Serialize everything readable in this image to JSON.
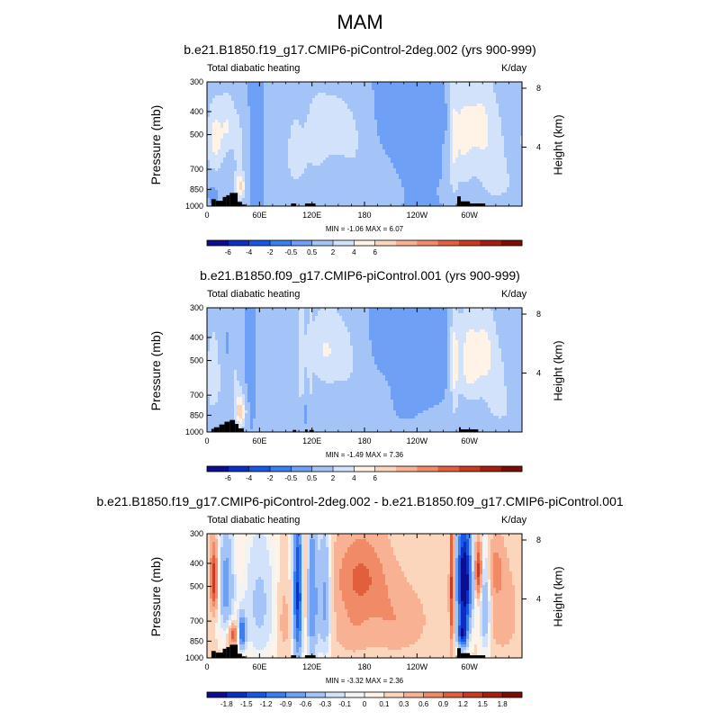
{
  "page": {
    "title": "MAM"
  },
  "chart_data": [
    {
      "type": "heatmap",
      "title": "b.e21.B1850.f19_g17.CMIP6-piControl-2deg.002 (yrs 900-999)",
      "subtitle_left": "Total diabatic heating",
      "subtitle_right": "K/day",
      "ylabel": "Pressure (mb)",
      "ylabel_right": "Height (km)",
      "x_ticks": [
        "0",
        "60E",
        "120E",
        "180",
        "120W",
        "60W"
      ],
      "x_tick_lon": [
        0,
        60,
        120,
        180,
        240,
        300
      ],
      "xlim": [
        0,
        360
      ],
      "y_ticks": [
        "300",
        "400",
        "500",
        "700",
        "850",
        "1000"
      ],
      "y_tick_p": [
        300,
        400,
        500,
        700,
        850,
        1000
      ],
      "ylim_mb": [
        1000,
        300
      ],
      "height_ticks": [
        "8",
        "4"
      ],
      "height_tick_km": [
        8,
        4
      ],
      "min_max": "MIN = -1.06  MAX = 6.07",
      "colorbar_labels": [
        "-6",
        "-4",
        "-2",
        "-0.5",
        "0.5",
        "2",
        "4",
        "6"
      ],
      "colorbar_colors": [
        "#0d0d8f",
        "#0a2fc2",
        "#1856e6",
        "#3a7ef0",
        "#6ea1f5",
        "#a4c3f7",
        "#d2e2fa",
        "#fff2e6",
        "#fcd5bd",
        "#f8b192",
        "#f08a67",
        "#e25f3e",
        "#c93a1e",
        "#a51f0e",
        "#7d0c04"
      ],
      "blobs": [
        {
          "lon": 10,
          "p": 520,
          "slon": 7,
          "sp": 120,
          "amp": 4.4
        },
        {
          "lon": 24,
          "p": 450,
          "slon": 5,
          "sp": 90,
          "amp": 3.0
        },
        {
          "lon": 38,
          "p": 830,
          "slon": 4,
          "sp": 70,
          "amp": 5.6
        },
        {
          "lon": 36,
          "p": 560,
          "slon": 5,
          "sp": 160,
          "amp": 2.0
        },
        {
          "lon": 5,
          "p": 880,
          "slon": 4,
          "sp": 50,
          "amp": -0.8
        },
        {
          "lon": 55,
          "p": 600,
          "slon": 4,
          "sp": 200,
          "amp": -0.6
        },
        {
          "lon": 100,
          "p": 560,
          "slon": 10,
          "sp": 220,
          "amp": 1.6
        },
        {
          "lon": 143,
          "p": 450,
          "slon": 12,
          "sp": 90,
          "amp": 2.6
        },
        {
          "lon": 125,
          "p": 470,
          "slon": 8,
          "sp": 120,
          "amp": 1.8
        },
        {
          "lon": 168,
          "p": 500,
          "slon": 12,
          "sp": 150,
          "amp": 1.3
        },
        {
          "lon": 130,
          "p": 700,
          "slon": 25,
          "sp": 160,
          "amp": 1.0
        },
        {
          "lon": 190,
          "p": 780,
          "slon": 22,
          "sp": 150,
          "amp": 0.8
        },
        {
          "lon": 225,
          "p": 550,
          "slon": 28,
          "sp": 250,
          "amp": -0.45
        },
        {
          "lon": 268,
          "p": 430,
          "slon": 5,
          "sp": 50,
          "amp": -0.9
        },
        {
          "lon": 292,
          "p": 500,
          "slon": 9,
          "sp": 180,
          "amp": 3.8
        },
        {
          "lon": 312,
          "p": 450,
          "slon": 10,
          "sp": 150,
          "amp": 3.2
        },
        {
          "lon": 282,
          "p": 560,
          "slon": 3,
          "sp": 260,
          "amp": 2.2
        },
        {
          "lon": 328,
          "p": 620,
          "slon": 12,
          "sp": 220,
          "amp": 2.2
        },
        {
          "lon": 345,
          "p": 820,
          "slon": 15,
          "sp": 120,
          "amp": 0.9
        },
        {
          "lon": 300,
          "p": 840,
          "slon": 18,
          "sp": 80,
          "amp": 0.6
        }
      ],
      "background": 0.5,
      "topography": [
        {
          "lon0": 5,
          "lon1": 10,
          "p": 935
        },
        {
          "lon0": 10,
          "lon1": 18,
          "p": 950
        },
        {
          "lon0": 18,
          "lon1": 22,
          "p": 915
        },
        {
          "lon0": 22,
          "lon1": 26,
          "p": 900
        },
        {
          "lon0": 26,
          "lon1": 35,
          "p": 880
        },
        {
          "lon0": 35,
          "lon1": 40,
          "p": 960
        },
        {
          "lon0": 40,
          "lon1": 44,
          "p": 985
        },
        {
          "lon0": 96,
          "lon1": 102,
          "p": 975
        },
        {
          "lon0": 112,
          "lon1": 124,
          "p": 975
        },
        {
          "lon0": 286,
          "lon1": 290,
          "p": 910
        },
        {
          "lon0": 290,
          "lon1": 300,
          "p": 955
        },
        {
          "lon0": 300,
          "lon1": 318,
          "p": 975
        }
      ]
    },
    {
      "type": "heatmap",
      "title": "b.e21.B1850.f09_g17.CMIP6-piControl.001 (yrs 900-999)",
      "subtitle_left": "Total diabatic heating",
      "subtitle_right": "K/day",
      "ylabel": "Pressure (mb)",
      "ylabel_right": "Height (km)",
      "x_ticks": [
        "0",
        "60E",
        "120E",
        "180",
        "120W",
        "60W"
      ],
      "x_tick_lon": [
        0,
        60,
        120,
        180,
        240,
        300
      ],
      "xlim": [
        0,
        360
      ],
      "y_ticks": [
        "300",
        "400",
        "500",
        "700",
        "850",
        "1000"
      ],
      "y_tick_p": [
        300,
        400,
        500,
        700,
        850,
        1000
      ],
      "ylim_mb": [
        1000,
        300
      ],
      "height_ticks": [
        "8",
        "4"
      ],
      "height_tick_km": [
        8,
        4
      ],
      "min_max": "MIN = -1.49  MAX = 7.36",
      "colorbar_labels": [
        "-6",
        "-4",
        "-2",
        "-0.5",
        "0.5",
        "2",
        "4",
        "6"
      ],
      "colorbar_colors": [
        "#0d0d8f",
        "#0a2fc2",
        "#1856e6",
        "#3a7ef0",
        "#6ea1f5",
        "#a4c3f7",
        "#d2e2fa",
        "#fff2e6",
        "#fcd5bd",
        "#f8b192",
        "#f08a67",
        "#e25f3e",
        "#c93a1e",
        "#a51f0e",
        "#7d0c04"
      ],
      "blobs": [
        {
          "lon": 8,
          "p": 560,
          "slon": 8,
          "sp": 200,
          "amp": 2.2
        },
        {
          "lon": 20,
          "p": 450,
          "slon": 5,
          "sp": 80,
          "amp": -0.6
        },
        {
          "lon": 38,
          "p": 820,
          "slon": 4,
          "sp": 90,
          "amp": 6.5
        },
        {
          "lon": 32,
          "p": 620,
          "slon": 4,
          "sp": 150,
          "amp": 1.6
        },
        {
          "lon": 6,
          "p": 850,
          "slon": 4,
          "sp": 40,
          "amp": -0.8
        },
        {
          "lon": 50,
          "p": 600,
          "slon": 4,
          "sp": 200,
          "amp": -0.5
        },
        {
          "lon": 80,
          "p": 650,
          "slon": 12,
          "sp": 250,
          "amp": 1.0
        },
        {
          "lon": 108,
          "p": 500,
          "slon": 3,
          "sp": 220,
          "amp": 3.2
        },
        {
          "lon": 135,
          "p": 450,
          "slon": 12,
          "sp": 120,
          "amp": 3.4
        },
        {
          "lon": 118,
          "p": 520,
          "slon": 2,
          "sp": 220,
          "amp": 1.8
        },
        {
          "lon": 160,
          "p": 480,
          "slon": 12,
          "sp": 160,
          "amp": 1.5
        },
        {
          "lon": 110,
          "p": 780,
          "slon": 3,
          "sp": 100,
          "amp": -0.9
        },
        {
          "lon": 190,
          "p": 750,
          "slon": 22,
          "sp": 150,
          "amp": 0.7
        },
        {
          "lon": 230,
          "p": 450,
          "slon": 26,
          "sp": 160,
          "amp": -0.9
        },
        {
          "lon": 222,
          "p": 740,
          "slon": 10,
          "sp": 90,
          "amp": -0.6
        },
        {
          "lon": 283,
          "p": 520,
          "slon": 3,
          "sp": 220,
          "amp": 3.8
        },
        {
          "lon": 300,
          "p": 500,
          "slon": 9,
          "sp": 150,
          "amp": 4.8
        },
        {
          "lon": 318,
          "p": 450,
          "slon": 7,
          "sp": 120,
          "amp": 3.0
        },
        {
          "lon": 330,
          "p": 620,
          "slon": 12,
          "sp": 200,
          "amp": 2.0
        },
        {
          "lon": 345,
          "p": 830,
          "slon": 15,
          "sp": 100,
          "amp": 0.8
        }
      ],
      "background": 0.55,
      "topography": [
        {
          "lon0": 5,
          "lon1": 8,
          "p": 970
        },
        {
          "lon0": 8,
          "lon1": 14,
          "p": 955
        },
        {
          "lon0": 14,
          "lon1": 20,
          "p": 930
        },
        {
          "lon0": 20,
          "lon1": 26,
          "p": 905
        },
        {
          "lon0": 26,
          "lon1": 32,
          "p": 890
        },
        {
          "lon0": 32,
          "lon1": 36,
          "p": 925
        },
        {
          "lon0": 36,
          "lon1": 42,
          "p": 965
        },
        {
          "lon0": 98,
          "lon1": 102,
          "p": 980
        },
        {
          "lon0": 112,
          "lon1": 115,
          "p": 975
        },
        {
          "lon0": 117,
          "lon1": 122,
          "p": 980
        },
        {
          "lon0": 288,
          "lon1": 290,
          "p": 955
        },
        {
          "lon0": 290,
          "lon1": 310,
          "p": 975
        }
      ]
    },
    {
      "type": "heatmap",
      "title": "b.e21.B1850.f19_g17.CMIP6-piControl-2deg.002 - b.e21.B1850.f09_g17.CMIP6-piControl.001",
      "subtitle_left": "Total diabatic heating",
      "subtitle_right": "K/day",
      "ylabel": "Pressure (mb)",
      "ylabel_right": "Height (km)",
      "x_ticks": [
        "0",
        "60E",
        "120E",
        "180",
        "120W",
        "60W"
      ],
      "x_tick_lon": [
        0,
        60,
        120,
        180,
        240,
        300
      ],
      "xlim": [
        0,
        360
      ],
      "y_ticks": [
        "300",
        "400",
        "500",
        "700",
        "850",
        "1000"
      ],
      "y_tick_p": [
        300,
        400,
        500,
        700,
        850,
        1000
      ],
      "ylim_mb": [
        1000,
        300
      ],
      "height_ticks": [
        "8",
        "4"
      ],
      "height_tick_km": [
        8,
        4
      ],
      "min_max": "MIN = -3.32  MAX = 2.36",
      "colorbar_labels": [
        "-1.8",
        "-1.5",
        "-1.2",
        "-0.9",
        "-0.6",
        "-0.3",
        "-0.1",
        "0",
        "0.1",
        "0.3",
        "0.6",
        "0.9",
        "1.2",
        "1.5",
        "1.8"
      ],
      "colorbar_colors": [
        "#0d0d8f",
        "#0a2fc2",
        "#1856e6",
        "#3a7ef0",
        "#6ea1f5",
        "#a4c3f7",
        "#d2e2fa",
        "#f3f3f3",
        "#fff2e6",
        "#fcd5bd",
        "#f8b192",
        "#f08a67",
        "#e25f3e",
        "#c93a1e",
        "#a51f0e",
        "#7d0c04"
      ],
      "blobs": [
        {
          "lon": 8,
          "p": 470,
          "slon": 3,
          "sp": 100,
          "amp": 1.4
        },
        {
          "lon": 22,
          "p": 500,
          "slon": 6,
          "sp": 180,
          "amp": -0.9
        },
        {
          "lon": 40,
          "p": 780,
          "slon": 3,
          "sp": 90,
          "amp": -1.4
        },
        {
          "lon": 30,
          "p": 800,
          "slon": 4,
          "sp": 60,
          "amp": 1.0
        },
        {
          "lon": 60,
          "p": 600,
          "slon": 12,
          "sp": 250,
          "amp": -0.5
        },
        {
          "lon": 88,
          "p": 700,
          "slon": 5,
          "sp": 180,
          "amp": 0.3
        },
        {
          "lon": 104,
          "p": 550,
          "slon": 4,
          "sp": 300,
          "amp": -1.7
        },
        {
          "lon": 120,
          "p": 560,
          "slon": 5,
          "sp": 300,
          "amp": -1.1
        },
        {
          "lon": 112,
          "p": 500,
          "slon": 3,
          "sp": 260,
          "amp": 0.6
        },
        {
          "lon": 135,
          "p": 560,
          "slon": 5,
          "sp": 250,
          "amp": -0.9
        },
        {
          "lon": 175,
          "p": 450,
          "slon": 22,
          "sp": 130,
          "amp": 0.8
        },
        {
          "lon": 215,
          "p": 700,
          "slon": 25,
          "sp": 160,
          "amp": 0.45
        },
        {
          "lon": 165,
          "p": 760,
          "slon": 15,
          "sp": 140,
          "amp": 0.35
        },
        {
          "lon": 280,
          "p": 500,
          "slon": 2,
          "sp": 250,
          "amp": 1.3
        },
        {
          "lon": 294,
          "p": 480,
          "slon": 6,
          "sp": 180,
          "amp": -2.4
        },
        {
          "lon": 292,
          "p": 800,
          "slon": 4,
          "sp": 80,
          "amp": -1.5
        },
        {
          "lon": 310,
          "p": 430,
          "slon": 3,
          "sp": 80,
          "amp": 1.3
        },
        {
          "lon": 318,
          "p": 620,
          "slon": 4,
          "sp": 200,
          "amp": -0.8
        },
        {
          "lon": 330,
          "p": 420,
          "slon": 6,
          "sp": 80,
          "amp": 0.5
        },
        {
          "lon": 338,
          "p": 640,
          "slon": 12,
          "sp": 200,
          "amp": 0.4
        }
      ],
      "background": 0.12,
      "topography": [
        {
          "lon0": 5,
          "lon1": 10,
          "p": 935
        },
        {
          "lon0": 10,
          "lon1": 18,
          "p": 950
        },
        {
          "lon0": 18,
          "lon1": 22,
          "p": 915
        },
        {
          "lon0": 22,
          "lon1": 26,
          "p": 900
        },
        {
          "lon0": 26,
          "lon1": 35,
          "p": 880
        },
        {
          "lon0": 35,
          "lon1": 40,
          "p": 960
        },
        {
          "lon0": 40,
          "lon1": 44,
          "p": 985
        },
        {
          "lon0": 96,
          "lon1": 102,
          "p": 975
        },
        {
          "lon0": 112,
          "lon1": 124,
          "p": 975
        },
        {
          "lon0": 286,
          "lon1": 290,
          "p": 910
        },
        {
          "lon0": 290,
          "lon1": 300,
          "p": 955
        },
        {
          "lon0": 300,
          "lon1": 318,
          "p": 975
        }
      ]
    }
  ]
}
